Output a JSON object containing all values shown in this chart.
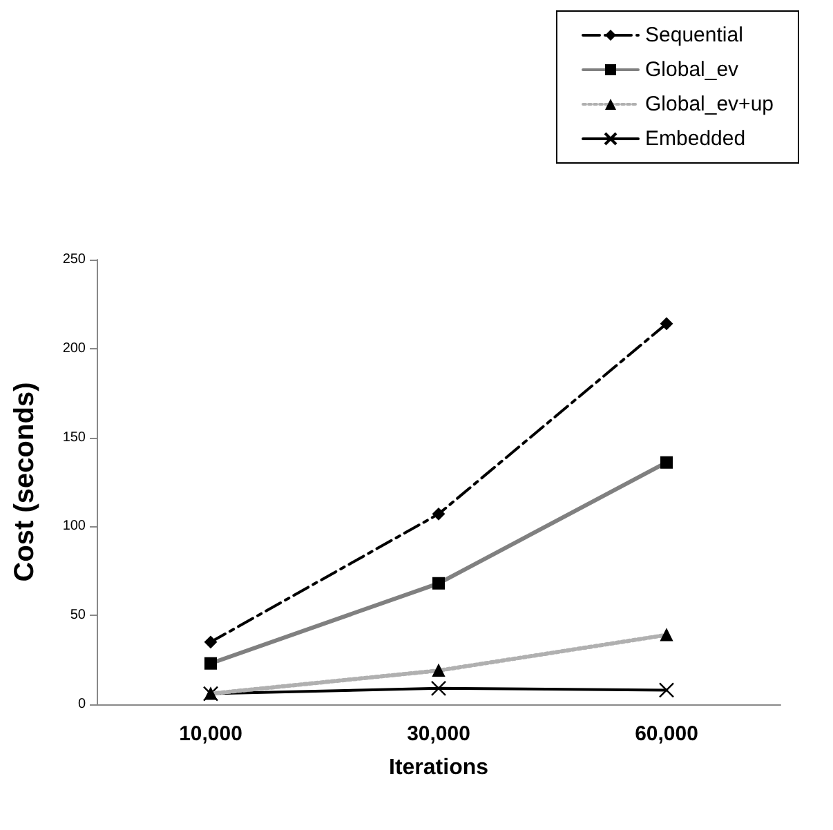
{
  "chart_data": {
    "type": "line",
    "xlabel": "Iterations",
    "ylabel": "Cost (seconds)",
    "categories": [
      "10,000",
      "30,000",
      "60,000"
    ],
    "ylim": [
      0,
      250
    ],
    "yticks": [
      0,
      50,
      100,
      150,
      200,
      250
    ],
    "grid": false,
    "legend": "top right",
    "series": [
      {
        "name": "Sequential",
        "color": "#000000",
        "values": [
          35,
          107,
          214
        ],
        "marker": "diamond",
        "line_style": "dashed"
      },
      {
        "name": "Global_ev",
        "color": "#808080",
        "values": [
          23,
          68,
          136
        ],
        "marker": "square",
        "line_style": "solid"
      },
      {
        "name": "Global_ev+up",
        "color": "#b0b0b0",
        "values": [
          6,
          19,
          39
        ],
        "marker": "triangle",
        "line_style": "dotted"
      },
      {
        "name": "Embedded",
        "color": "#000000",
        "values": [
          6,
          9,
          8
        ],
        "marker": "cross",
        "line_style": "solid"
      }
    ]
  }
}
